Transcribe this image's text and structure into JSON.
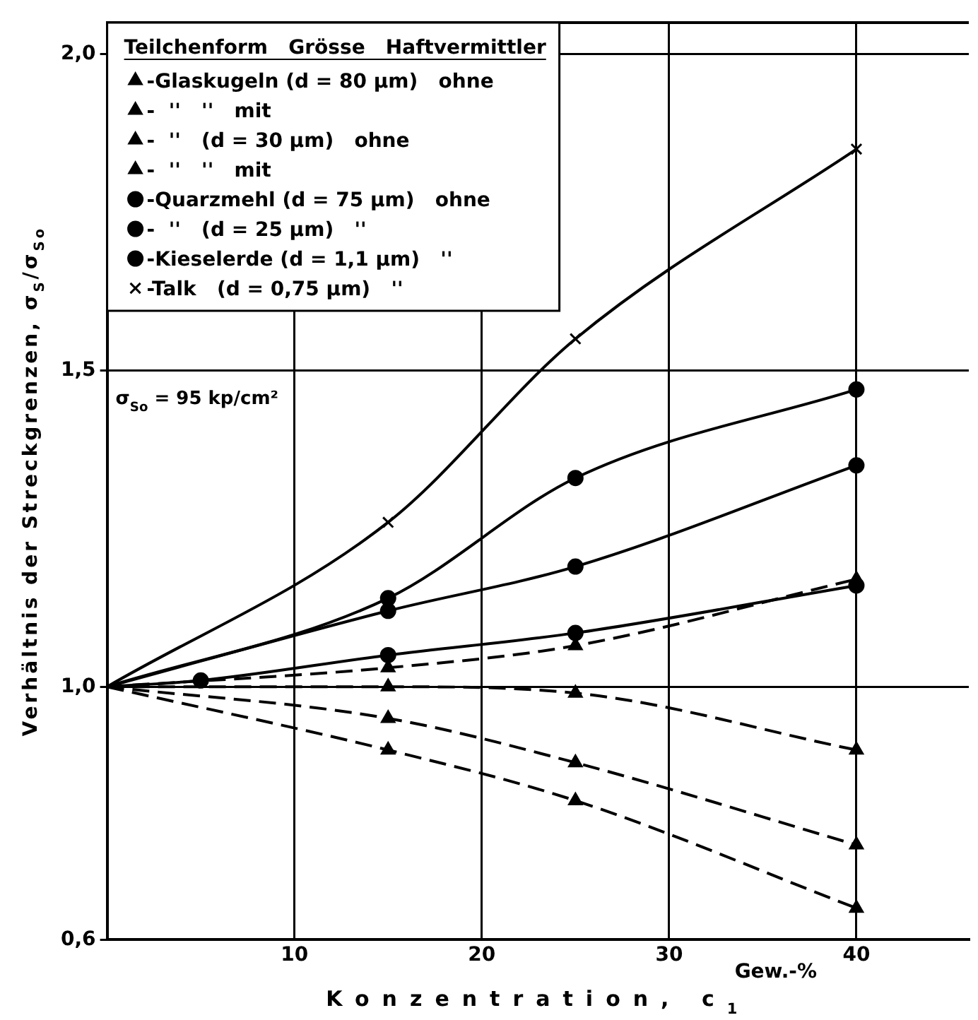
{
  "chart_data": {
    "type": "line",
    "xlabel": "Konzentration, c$_{1}$",
    "ylabel": "Verhältnis der Streckgrenzen, σ$_{S}$/σ$_{So}$",
    "legend_title": "Teilchenform   Grösse   Haftvermittler",
    "legend": "top left",
    "grid": true,
    "xlim": [
      0,
      46
    ],
    "xticks": [
      10,
      20,
      30,
      40
    ],
    "ylim": [
      0.6,
      2.05
    ],
    "yticks": [
      {
        "value": 0.6,
        "label": "0,6"
      },
      {
        "value": 1.0,
        "label": "1,0"
      },
      {
        "value": 1.5,
        "label": "1,5"
      },
      {
        "value": 2.0,
        "label": "2,0"
      }
    ],
    "annotations": [
      "σ$_{So}$ = 95 kp/cm²",
      "Gew.-%"
    ],
    "series": [
      {
        "name": "-Glaskugeln (d = 80 µm)   ohne",
        "color": "#000000",
        "marker": "triangle",
        "line_style": "dashed",
        "x": [
          0,
          15,
          25,
          40
        ],
        "values": [
          1.0,
          0.9,
          0.82,
          0.65
        ]
      },
      {
        "name": "-  ''   ''   mit",
        "color": "#000000",
        "marker": "triangle",
        "line_style": "dashed",
        "x": [
          0,
          15,
          25,
          40
        ],
        "values": [
          1.0,
          0.95,
          0.88,
          0.75
        ]
      },
      {
        "name": "-  ''   (d = 30 µm)   ohne",
        "color": "#000000",
        "marker": "triangle",
        "line_style": "dashed",
        "x": [
          0,
          15,
          25,
          40
        ],
        "values": [
          1.0,
          1.0,
          0.99,
          0.9
        ]
      },
      {
        "name": "-  ''   ''   mit",
        "color": "#000000",
        "marker": "triangle",
        "line_style": "dashed",
        "x": [
          0,
          15,
          25,
          40
        ],
        "values": [
          1.0,
          1.03,
          1.065,
          1.17
        ]
      },
      {
        "name": "-Quarzmehl (d = 75 µm)   ohne",
        "color": "#000000",
        "marker": "circle",
        "line_style": "solid",
        "x": [
          0,
          5,
          15,
          25,
          40
        ],
        "values": [
          1.0,
          1.01,
          1.05,
          1.085,
          1.16
        ]
      },
      {
        "name": "-  ''   (d = 25 µm)   ''",
        "color": "#000000",
        "marker": "circle",
        "line_style": "solid",
        "x": [
          0,
          15,
          25,
          40
        ],
        "values": [
          1.0,
          1.12,
          1.19,
          1.35
        ]
      },
      {
        "name": "-Kieselerde (d = 1,1 µm)   ''",
        "color": "#000000",
        "marker": "circle",
        "line_style": "solid",
        "x": [
          0,
          15,
          25,
          40
        ],
        "values": [
          1.0,
          1.14,
          1.33,
          1.47
        ]
      },
      {
        "name": "-Talk   (d = 0,75 µm)   ''",
        "color": "#000000",
        "marker": "cross",
        "line_style": "solid",
        "x": [
          0,
          15,
          25,
          40
        ],
        "values": [
          1.0,
          1.26,
          1.55,
          1.85
        ]
      }
    ]
  }
}
